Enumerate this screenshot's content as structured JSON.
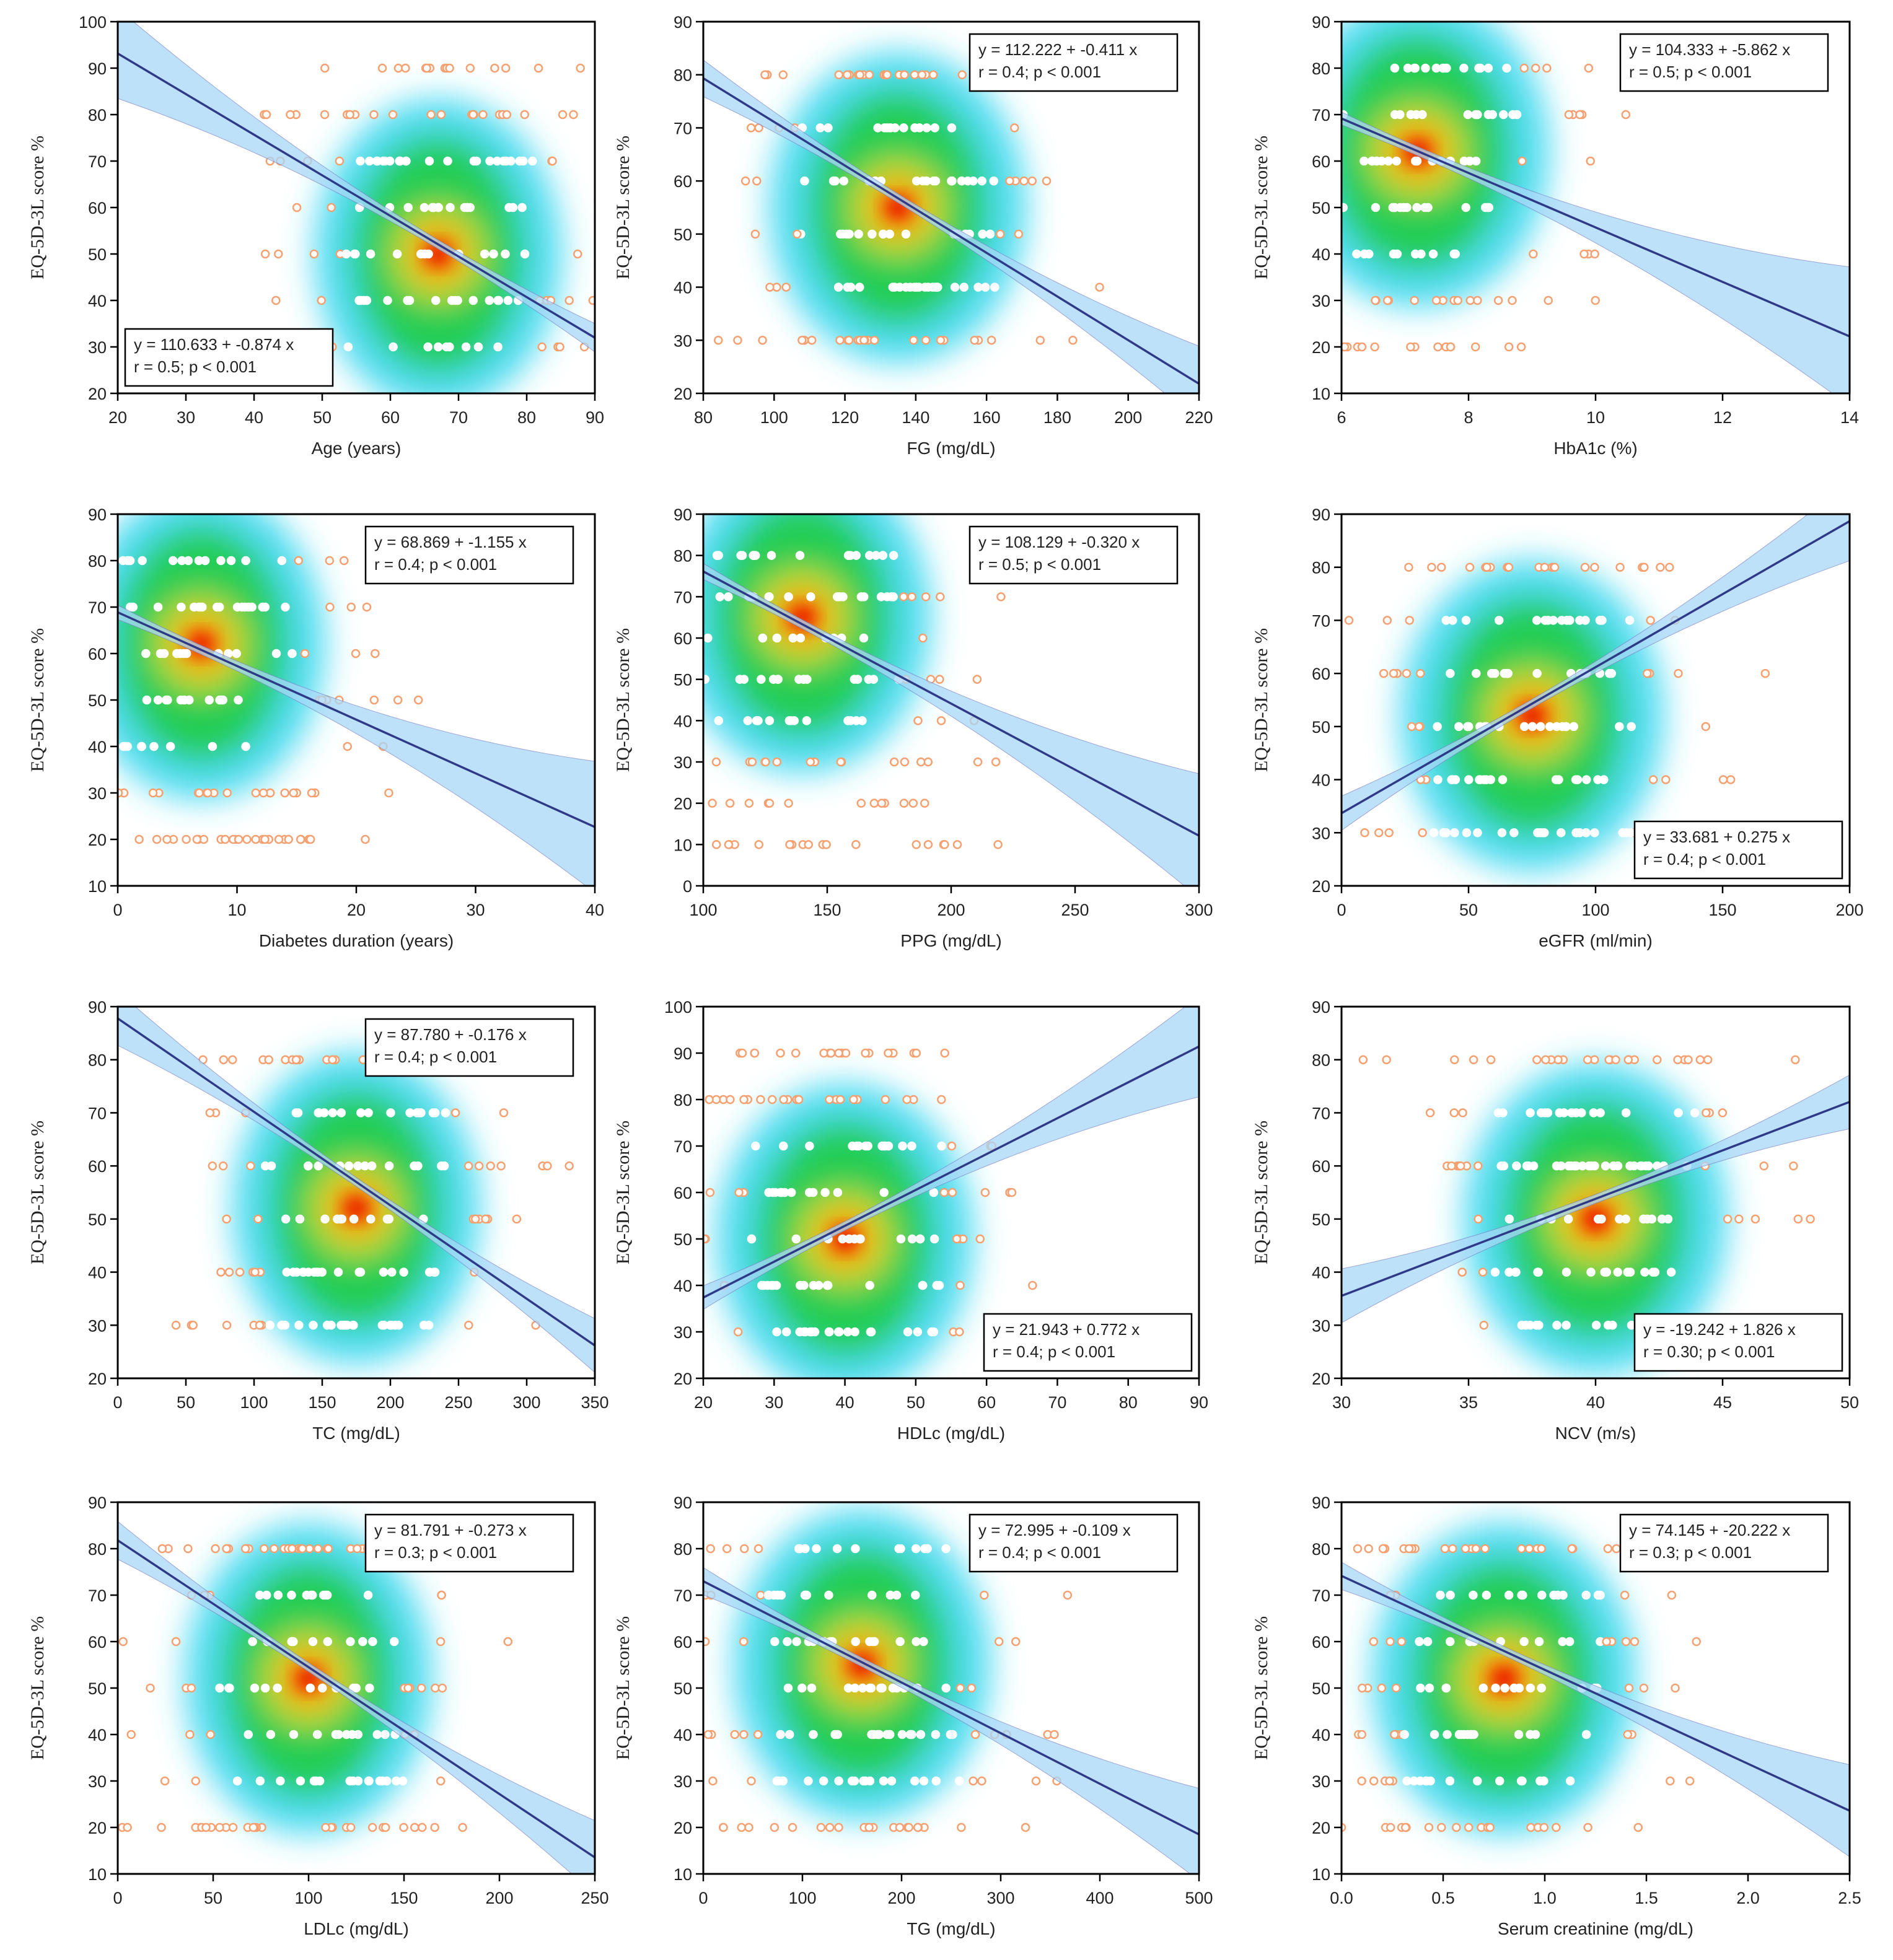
{
  "chart_data": [
    {
      "type": "scatter",
      "xlabel": "Age (years)",
      "ylabel": "EQ-5D-3L score  %",
      "xlim": [
        20,
        90
      ],
      "ylim": [
        20,
        100
      ],
      "xticks": [
        20,
        30,
        40,
        50,
        60,
        70,
        80,
        90
      ],
      "yticks": [
        20,
        30,
        40,
        50,
        60,
        70,
        80,
        90,
        100
      ],
      "regression": {
        "intercept": 110.633,
        "slope": -0.874
      },
      "annotation": [
        "y = 110.633 + -0.874 x",
        "r = 0.5; p < 0.001"
      ],
      "legend": "bottom-left",
      "density_center": [
        67,
        50
      ]
    },
    {
      "type": "scatter",
      "xlabel": "FG (mg/dL)",
      "ylabel": "EQ-5D-3L score  %",
      "xlim": [
        80,
        220
      ],
      "ylim": [
        20,
        90
      ],
      "xticks": [
        80,
        100,
        120,
        140,
        160,
        180,
        200,
        220
      ],
      "yticks": [
        20,
        30,
        40,
        50,
        60,
        70,
        80,
        90
      ],
      "regression": {
        "intercept": 112.222,
        "slope": -0.411
      },
      "annotation": [
        "y = 112.222 + -0.411 x",
        "r = 0.4; p < 0.001"
      ],
      "legend": "top-right",
      "density_center": [
        135,
        55
      ]
    },
    {
      "type": "scatter",
      "xlabel": "HbA1c (%)",
      "ylabel": "EQ-5D-3L score  %",
      "xlim": [
        6,
        14
      ],
      "ylim": [
        10,
        90
      ],
      "xticks": [
        6,
        8,
        10,
        12,
        14
      ],
      "yticks": [
        10,
        20,
        30,
        40,
        50,
        60,
        70,
        80,
        90
      ],
      "regression": {
        "intercept": 104.333,
        "slope": -5.862
      },
      "annotation": [
        "y = 104.333 + -5.862 x",
        "r = 0.5; p < 0.001"
      ],
      "legend": "top-right",
      "density_center": [
        7.2,
        62
      ]
    },
    {
      "type": "scatter",
      "xlabel": "Diabetes duration (years)",
      "ylabel": "EQ-5D-3L score  %",
      "xlim": [
        0,
        40
      ],
      "ylim": [
        10,
        90
      ],
      "xticks": [
        0,
        10,
        20,
        30,
        40
      ],
      "yticks": [
        10,
        20,
        30,
        40,
        50,
        60,
        70,
        80,
        90
      ],
      "regression": {
        "intercept": 68.869,
        "slope": -1.155
      },
      "annotation": [
        "y = 68.869 + -1.155 x",
        "r = 0.4; p < 0.001"
      ],
      "legend": "top-right",
      "density_center": [
        7,
        62
      ]
    },
    {
      "type": "scatter",
      "xlabel": "PPG (mg/dL)",
      "ylabel": "EQ-5D-3L score  %",
      "xlim": [
        100,
        300
      ],
      "ylim": [
        0,
        90
      ],
      "xticks": [
        100,
        150,
        200,
        250,
        300
      ],
      "yticks": [
        0,
        10,
        20,
        30,
        40,
        50,
        60,
        70,
        80,
        90
      ],
      "regression": {
        "intercept": 108.129,
        "slope": -0.32
      },
      "annotation": [
        "y = 108.129 + -0.320 x",
        "r = 0.5; p < 0.001"
      ],
      "legend": "top-right",
      "density_center": [
        140,
        65
      ]
    },
    {
      "type": "scatter",
      "xlabel": "eGFR (ml/min)",
      "ylabel": "EQ-5D-3L score  %",
      "xlim": [
        0,
        200
      ],
      "ylim": [
        20,
        90
      ],
      "xticks": [
        0,
        50,
        100,
        150,
        200
      ],
      "yticks": [
        20,
        30,
        40,
        50,
        60,
        70,
        80,
        90
      ],
      "regression": {
        "intercept": 33.681,
        "slope": 0.275
      },
      "annotation": [
        "y = 33.681 + 0.275 x",
        "r = 0.4; p < 0.001"
      ],
      "legend": "bottom-right",
      "density_center": [
        75,
        52
      ]
    },
    {
      "type": "scatter",
      "xlabel": "TC (mg/dL)",
      "ylabel": "EQ-5D-3L score  %",
      "xlim": [
        0,
        350
      ],
      "ylim": [
        20,
        90
      ],
      "xticks": [
        0,
        50,
        100,
        150,
        200,
        250,
        300,
        350
      ],
      "yticks": [
        20,
        30,
        40,
        50,
        60,
        70,
        80,
        90
      ],
      "regression": {
        "intercept": 87.78,
        "slope": -0.176
      },
      "annotation": [
        "y = 87.780 + -0.176 x",
        "r = 0.4; p < 0.001"
      ],
      "legend": "top-right",
      "density_center": [
        175,
        52
      ]
    },
    {
      "type": "scatter",
      "xlabel": "HDLc (mg/dL)",
      "ylabel": "EQ-5D-3L score  %",
      "xlim": [
        20,
        90
      ],
      "ylim": [
        20,
        100
      ],
      "xticks": [
        20,
        30,
        40,
        50,
        60,
        70,
        80,
        90
      ],
      "yticks": [
        20,
        30,
        40,
        50,
        60,
        70,
        80,
        90,
        100
      ],
      "regression": {
        "intercept": 21.943,
        "slope": 0.772
      },
      "annotation": [
        "y = 21.943 + 0.772 x",
        "r = 0.4; p < 0.001"
      ],
      "legend": "bottom-right",
      "density_center": [
        40,
        50
      ]
    },
    {
      "type": "scatter",
      "xlabel": "NCV (m/s)",
      "ylabel": "EQ-5D-3L score  %",
      "xlim": [
        30,
        50
      ],
      "ylim": [
        20,
        90
      ],
      "xticks": [
        30,
        35,
        40,
        45,
        50
      ],
      "yticks": [
        20,
        30,
        40,
        50,
        60,
        70,
        80,
        90
      ],
      "regression": {
        "intercept": -19.242,
        "slope": 1.826
      },
      "annotation": [
        "y = -19.242 + 1.826 x",
        "r = 0.30; p < 0.001"
      ],
      "legend": "bottom-right",
      "density_center": [
        40,
        50
      ]
    },
    {
      "type": "scatter",
      "xlabel": "LDLc (mg/dL)",
      "ylabel": "EQ-5D-3L score  %",
      "xlim": [
        0,
        250
      ],
      "ylim": [
        10,
        90
      ],
      "xticks": [
        0,
        50,
        100,
        150,
        200,
        250
      ],
      "yticks": [
        10,
        20,
        30,
        40,
        50,
        60,
        70,
        80,
        90
      ],
      "regression": {
        "intercept": 81.791,
        "slope": -0.273
      },
      "annotation": [
        "y = 81.791 + -0.273 x",
        "r = 0.3; p < 0.001"
      ],
      "legend": "top-right",
      "density_center": [
        100,
        52
      ]
    },
    {
      "type": "scatter",
      "xlabel": "TG (mg/dL)",
      "ylabel": "EQ-5D-3L score  %",
      "xlim": [
        0,
        500
      ],
      "ylim": [
        10,
        90
      ],
      "xticks": [
        0,
        100,
        200,
        300,
        400,
        500
      ],
      "yticks": [
        10,
        20,
        30,
        40,
        50,
        60,
        70,
        80,
        90
      ],
      "regression": {
        "intercept": 72.995,
        "slope": -0.109
      },
      "annotation": [
        "y = 72.995 + -0.109 x",
        "r = 0.4; p < 0.001"
      ],
      "legend": "top-right",
      "density_center": [
        160,
        55
      ]
    },
    {
      "type": "scatter",
      "xlabel": "Serum creatinine (mg/dL)",
      "ylabel": "EQ-5D-3L score  %",
      "xlim": [
        0,
        2.5
      ],
      "ylim": [
        10,
        90
      ],
      "xticks": [
        0.0,
        0.5,
        1.0,
        1.5,
        2.0,
        2.5
      ],
      "yticks": [
        10,
        20,
        30,
        40,
        50,
        60,
        70,
        80,
        90
      ],
      "xtick_labels": [
        "0.0",
        "0.5",
        "1.0",
        "1.5",
        "2.0",
        "2.5"
      ],
      "regression": {
        "intercept": 74.145,
        "slope": -20.222
      },
      "annotation": [
        "y = 74.145 + -20.222 x",
        "r = 0.3; p < 0.001"
      ],
      "legend": "top-right",
      "density_center": [
        0.8,
        52
      ]
    }
  ],
  "colors": {
    "line": "#2e3a87",
    "band": "#a8d8f8",
    "density": [
      "#33d6f0",
      "#22cc44",
      "#f2e600",
      "#ff5a00",
      "#e80000"
    ],
    "point_inner": "#ffffff",
    "point_outer": "#f4a070"
  }
}
